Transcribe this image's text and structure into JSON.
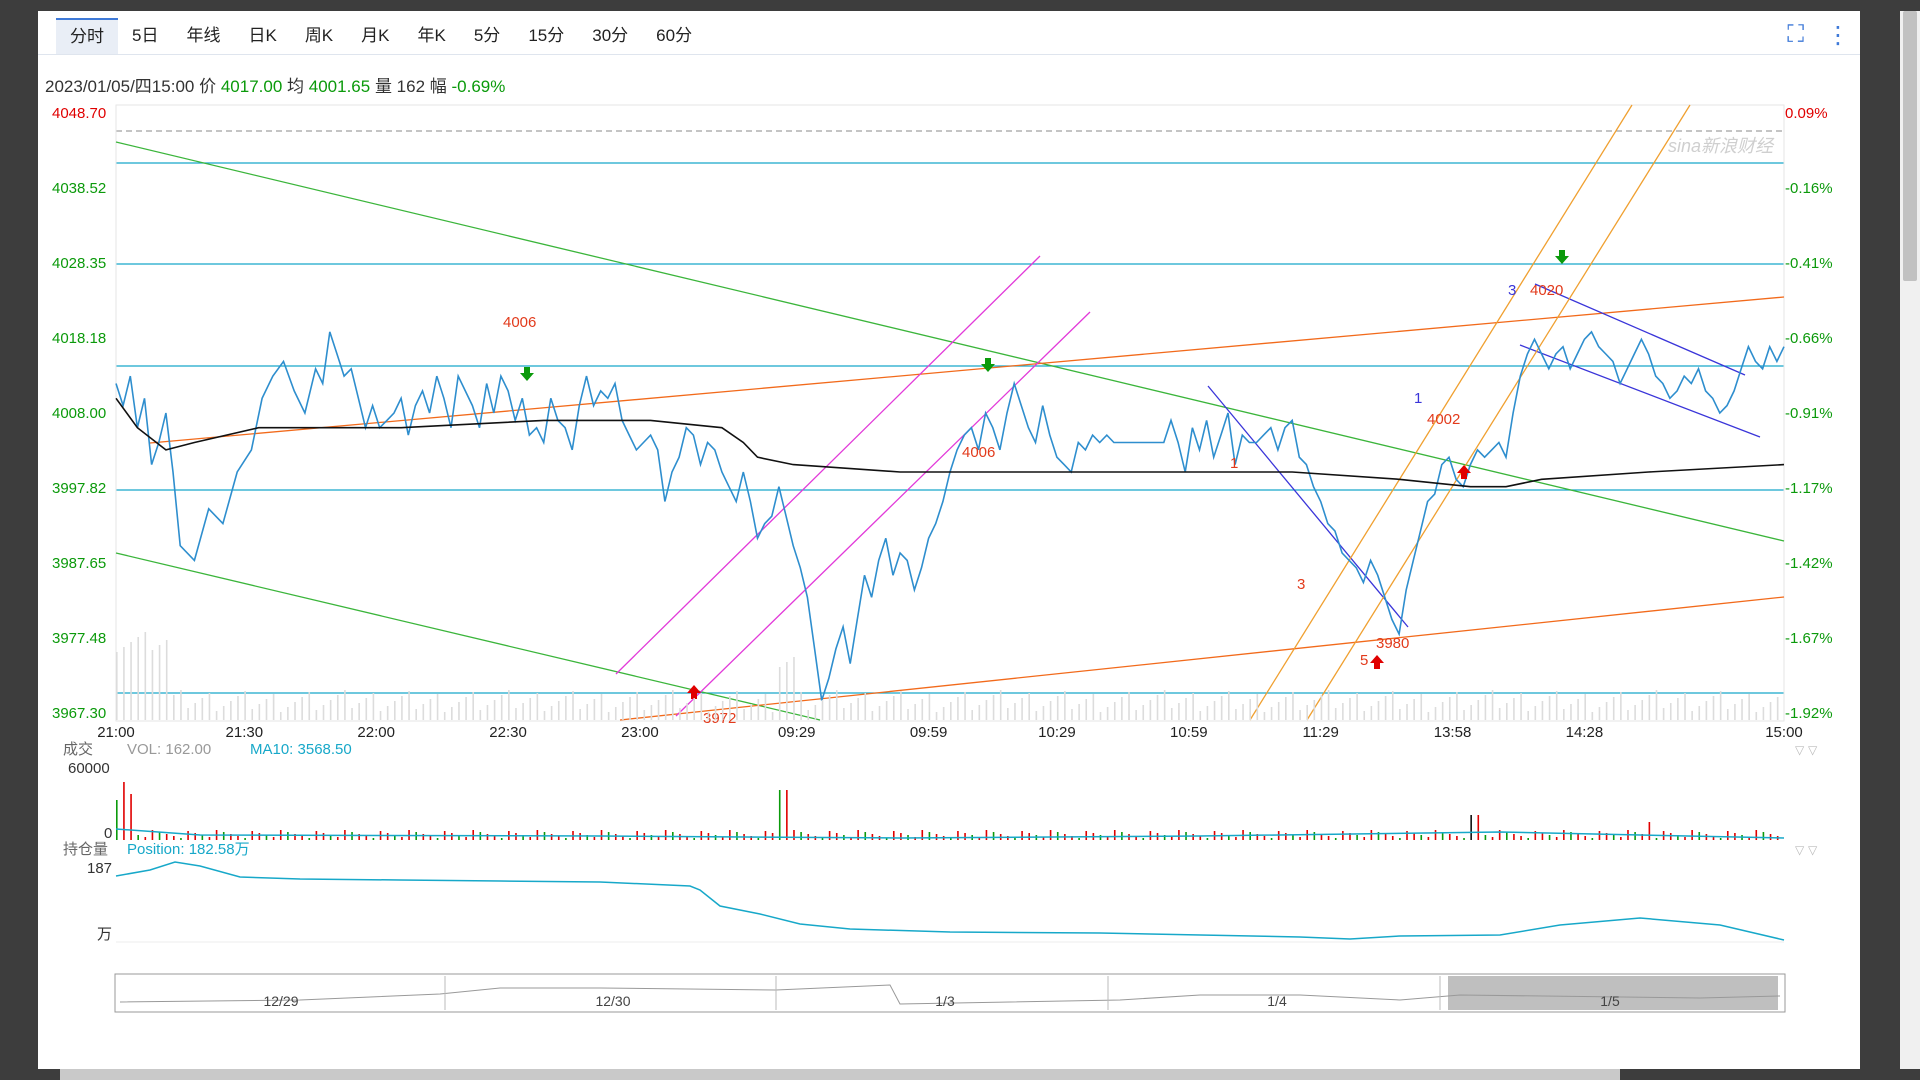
{
  "tabs": [
    {
      "label": "分时",
      "active": true
    },
    {
      "label": "5日",
      "active": false
    },
    {
      "label": "年线",
      "active": false
    },
    {
      "label": "日K",
      "active": false
    },
    {
      "label": "周K",
      "active": false
    },
    {
      "label": "月K",
      "active": false
    },
    {
      "label": "年K",
      "active": false
    },
    {
      "label": "5分",
      "active": false
    },
    {
      "label": "15分",
      "active": false
    },
    {
      "label": "30分",
      "active": false
    },
    {
      "label": "60分",
      "active": false
    }
  ],
  "icons": {
    "fullscreen": "fullscreen-icon",
    "menu": "more-vertical-icon"
  },
  "info": {
    "date": "2023/01/05/四15:00",
    "price_label": "价",
    "price": "4017.00",
    "avg_label": "均",
    "avg": "4001.65",
    "vol_label": "量",
    "vol": "162",
    "chg_label": "幅",
    "chg": "-0.69%"
  },
  "colors": {
    "price": "#2e8ece",
    "avg": "#111111",
    "up": "#e00000",
    "down": "#0b9a0b",
    "position": "#17a8c9",
    "teal": "#17a8c9",
    "green_line": "#3bb53b",
    "orange_line": "#f26a1b",
    "magenta": "#e23ad9",
    "blue_channel": "#3a35d9",
    "gold": "#f0a030"
  },
  "watermark": "sina新浪财经",
  "chart_data": {
    "type": "line",
    "x_tick_labels": [
      "21:00",
      "21:30",
      "22:00",
      "22:30",
      "23:00",
      "09:29",
      "09:59",
      "10:29",
      "10:59",
      "11:29",
      "13:58",
      "14:28",
      "15:00"
    ],
    "y_left_labels": [
      "4048.70",
      "4038.52",
      "4028.35",
      "4018.18",
      "4008.00",
      "3997.82",
      "3987.65",
      "3977.48",
      "3967.30"
    ],
    "y_right_labels": [
      "0.09%",
      "-0.16%",
      "-0.41%",
      "-0.66%",
      "-0.91%",
      "-1.17%",
      "-1.42%",
      "-1.67%",
      "-1.92%"
    ],
    "ylim": [
      3967.3,
      4048.7
    ],
    "price_series": [
      [
        0,
        4012
      ],
      [
        2,
        4009
      ],
      [
        4,
        4013
      ],
      [
        6,
        4006
      ],
      [
        8,
        4010
      ],
      [
        10,
        4001
      ],
      [
        12,
        4004
      ],
      [
        14,
        4008
      ],
      [
        16,
        4000
      ],
      [
        18,
        3990
      ],
      [
        22,
        3988
      ],
      [
        26,
        3995
      ],
      [
        30,
        3993
      ],
      [
        34,
        4000
      ],
      [
        38,
        4003
      ],
      [
        41,
        4010
      ],
      [
        44,
        4013
      ],
      [
        47,
        4015
      ],
      [
        50,
        4011
      ],
      [
        53,
        4008
      ],
      [
        56,
        4014
      ],
      [
        58,
        4012
      ],
      [
        60,
        4019
      ],
      [
        62,
        4016
      ],
      [
        64,
        4013
      ],
      [
        66,
        4014
      ],
      [
        68,
        4010
      ],
      [
        70,
        4006
      ],
      [
        72,
        4009
      ],
      [
        74,
        4006
      ],
      [
        76,
        4007
      ],
      [
        78,
        4008
      ],
      [
        80,
        4010
      ],
      [
        82,
        4005
      ],
      [
        84,
        4009
      ],
      [
        86,
        4011
      ],
      [
        88,
        4008
      ],
      [
        90,
        4013
      ],
      [
        92,
        4010
      ],
      [
        94,
        4006
      ],
      [
        96,
        4013
      ],
      [
        98,
        4011
      ],
      [
        100,
        4009
      ],
      [
        102,
        4006
      ],
      [
        104,
        4012
      ],
      [
        106,
        4008
      ],
      [
        108,
        4013
      ],
      [
        110,
        4011
      ],
      [
        112,
        4007
      ],
      [
        114,
        4010
      ],
      [
        116,
        4005
      ],
      [
        118,
        4006
      ],
      [
        120,
        4004
      ],
      [
        122,
        4010
      ],
      [
        124,
        4007
      ],
      [
        126,
        4006
      ],
      [
        128,
        4003
      ],
      [
        130,
        4009
      ],
      [
        132,
        4013
      ],
      [
        134,
        4009
      ],
      [
        136,
        4011
      ],
      [
        138,
        4010
      ],
      [
        140,
        4012
      ],
      [
        142,
        4007
      ],
      [
        144,
        4005
      ],
      [
        146,
        4003
      ],
      [
        148,
        4004
      ],
      [
        150,
        4005
      ],
      [
        152,
        4003
      ],
      [
        154,
        3996
      ],
      [
        156,
        4000
      ],
      [
        158,
        4002
      ],
      [
        160,
        4006
      ],
      [
        162,
        4005
      ],
      [
        164,
        4001
      ],
      [
        166,
        4004
      ],
      [
        168,
        4003
      ],
      [
        170,
        4000
      ],
      [
        172,
        3998
      ],
      [
        174,
        3996
      ],
      [
        176,
        4000
      ],
      [
        178,
        3996
      ],
      [
        180,
        3991
      ],
      [
        182,
        3993
      ],
      [
        184,
        3994
      ],
      [
        186,
        3998
      ],
      [
        188,
        3994
      ],
      [
        190,
        3990
      ],
      [
        192,
        3987
      ],
      [
        194,
        3983
      ],
      [
        196,
        3976
      ],
      [
        198,
        3969
      ],
      [
        200,
        3972
      ],
      [
        202,
        3976
      ],
      [
        204,
        3979
      ],
      [
        206,
        3974
      ],
      [
        208,
        3980
      ],
      [
        210,
        3986
      ],
      [
        212,
        3983
      ],
      [
        214,
        3988
      ],
      [
        216,
        3991
      ],
      [
        218,
        3986
      ],
      [
        220,
        3989
      ],
      [
        222,
        3988
      ],
      [
        224,
        3984
      ],
      [
        226,
        3987
      ],
      [
        228,
        3991
      ],
      [
        230,
        3993
      ],
      [
        232,
        3996
      ],
      [
        234,
        4000
      ],
      [
        236,
        4003
      ],
      [
        238,
        4005
      ],
      [
        240,
        4006
      ],
      [
        242,
        4003
      ],
      [
        244,
        4008
      ],
      [
        246,
        4006
      ],
      [
        248,
        4003
      ],
      [
        250,
        4008
      ],
      [
        252,
        4012
      ],
      [
        254,
        4009
      ],
      [
        256,
        4006
      ],
      [
        258,
        4004
      ],
      [
        260,
        4009
      ],
      [
        262,
        4005
      ],
      [
        264,
        4002
      ],
      [
        266,
        4001
      ],
      [
        268,
        4000
      ],
      [
        270,
        4004
      ],
      [
        272,
        4003
      ],
      [
        274,
        4005
      ],
      [
        276,
        4004
      ],
      [
        278,
        4005
      ],
      [
        280,
        4004
      ],
      [
        282,
        4004
      ],
      [
        284,
        4004
      ],
      [
        286,
        4004
      ],
      [
        288,
        4004
      ],
      [
        290,
        4004
      ],
      [
        292,
        4004
      ],
      [
        294,
        4004
      ],
      [
        296,
        4007
      ],
      [
        298,
        4004
      ],
      [
        300,
        4000
      ],
      [
        302,
        4006
      ],
      [
        304,
        4003
      ],
      [
        306,
        4007
      ],
      [
        308,
        4002
      ],
      [
        310,
        4005
      ],
      [
        312,
        4008
      ],
      [
        314,
        4001
      ],
      [
        316,
        4005
      ],
      [
        318,
        4004
      ],
      [
        320,
        4004
      ],
      [
        322,
        4005
      ],
      [
        324,
        4006
      ],
      [
        326,
        4003
      ],
      [
        328,
        4006
      ],
      [
        330,
        4007
      ],
      [
        332,
        4002
      ],
      [
        334,
        4001
      ],
      [
        336,
        3998
      ],
      [
        338,
        3996
      ],
      [
        340,
        3993
      ],
      [
        342,
        3992
      ],
      [
        344,
        3989
      ],
      [
        346,
        3988
      ],
      [
        348,
        3987
      ],
      [
        350,
        3985
      ],
      [
        352,
        3988
      ],
      [
        354,
        3986
      ],
      [
        356,
        3983
      ],
      [
        358,
        3980
      ],
      [
        360,
        3978
      ],
      [
        362,
        3984
      ],
      [
        364,
        3988
      ],
      [
        366,
        3992
      ],
      [
        368,
        3996
      ],
      [
        370,
        3997
      ],
      [
        372,
        4001
      ],
      [
        374,
        4002
      ],
      [
        376,
        3999
      ],
      [
        378,
        3998
      ],
      [
        380,
        4001
      ],
      [
        382,
        4003
      ],
      [
        384,
        4002
      ],
      [
        386,
        4003
      ],
      [
        388,
        4004
      ],
      [
        390,
        4002
      ],
      [
        392,
        4008
      ],
      [
        394,
        4013
      ],
      [
        396,
        4016
      ],
      [
        398,
        4018
      ],
      [
        400,
        4016
      ],
      [
        402,
        4014
      ],
      [
        404,
        4016
      ],
      [
        406,
        4017
      ],
      [
        408,
        4014
      ],
      [
        410,
        4016
      ],
      [
        412,
        4018
      ],
      [
        414,
        4019
      ],
      [
        416,
        4017
      ],
      [
        418,
        4016
      ],
      [
        420,
        4015
      ],
      [
        422,
        4012
      ],
      [
        424,
        4014
      ],
      [
        426,
        4016
      ],
      [
        428,
        4018
      ],
      [
        430,
        4016
      ],
      [
        432,
        4013
      ],
      [
        434,
        4012
      ],
      [
        436,
        4010
      ],
      [
        438,
        4011
      ],
      [
        440,
        4013
      ],
      [
        442,
        4012
      ],
      [
        444,
        4014
      ],
      [
        446,
        4011
      ],
      [
        448,
        4010
      ],
      [
        450,
        4008
      ],
      [
        452,
        4009
      ],
      [
        454,
        4011
      ],
      [
        456,
        4014
      ],
      [
        458,
        4017
      ],
      [
        460,
        4015
      ],
      [
        462,
        4014
      ],
      [
        464,
        4017
      ],
      [
        466,
        4015
      ],
      [
        468,
        4017
      ]
    ],
    "avg_series": [
      [
        0,
        4010
      ],
      [
        6,
        4006
      ],
      [
        14,
        4003
      ],
      [
        22,
        4004
      ],
      [
        40,
        4006
      ],
      [
        80,
        4006
      ],
      [
        120,
        4007
      ],
      [
        150,
        4007
      ],
      [
        170,
        4006
      ],
      [
        176,
        4004
      ],
      [
        180,
        4002
      ],
      [
        190,
        4001
      ],
      [
        220,
        4000
      ],
      [
        260,
        4000
      ],
      [
        300,
        4000
      ],
      [
        330,
        4000
      ],
      [
        360,
        3999
      ],
      [
        380,
        3998
      ],
      [
        390,
        3998
      ],
      [
        400,
        3999
      ],
      [
        430,
        4000
      ],
      [
        468,
        4001
      ]
    ],
    "annotations": [
      {
        "text": "4006",
        "color": "red"
      },
      {
        "text": "3972",
        "color": "red"
      },
      {
        "text": "4006",
        "color": "red"
      },
      {
        "text": "1",
        "color": "red"
      },
      {
        "text": "3",
        "color": "red"
      },
      {
        "text": "5",
        "color": "red"
      },
      {
        "text": "3980",
        "color": "red"
      },
      {
        "text": "1",
        "color": "blue"
      },
      {
        "text": "4002",
        "color": "red"
      },
      {
        "text": "3",
        "color": "blue"
      },
      {
        "text": "4020",
        "color": "red"
      }
    ],
    "arrows": [
      {
        "x": 135,
        "dir": "down"
      },
      {
        "x": 272,
        "dir": "down"
      },
      {
        "x": 470,
        "dir": "down"
      },
      {
        "x": 187,
        "dir": "up"
      },
      {
        "x": 387,
        "dir": "up"
      },
      {
        "x": 418,
        "dir": "up"
      }
    ],
    "volume_panel": {
      "label": "成交",
      "vol_text": "VOL: 162.00",
      "ma_text": "MA10: 3568.50",
      "ymax": "60000",
      "ymin": "0"
    },
    "position_panel": {
      "label": "持仓量",
      "pos_text": "Position: 182.58万",
      "ymax": "187",
      "unit": "万"
    },
    "navigator_labels": [
      "12/29",
      "12/30",
      "1/3",
      "1/4",
      "1/5"
    ]
  }
}
